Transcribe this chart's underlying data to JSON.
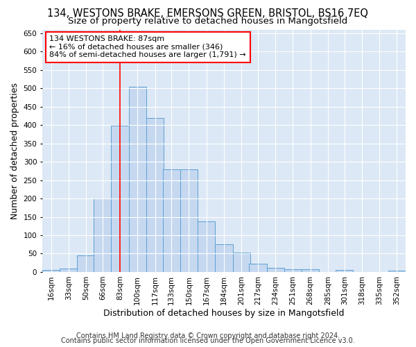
{
  "title_line1": "134, WESTONS BRAKE, EMERSONS GREEN, BRISTOL, BS16 7EQ",
  "title_line2": "Size of property relative to detached houses in Mangotsfield",
  "xlabel": "Distribution of detached houses by size in Mangotsfield",
  "ylabel": "Number of detached properties",
  "bar_color": "#c5d8f0",
  "bar_edge_color": "#5a9fd4",
  "background_color": "#dce8f5",
  "grid_color": "#ffffff",
  "annotation_text_line1": "134 WESTONS BRAKE: 87sqm",
  "annotation_text_line2": "← 16% of detached houses are smaller (346)",
  "annotation_text_line3": "84% of semi-detached houses are larger (1,791) →",
  "categories": [
    "16sqm",
    "33sqm",
    "50sqm",
    "66sqm",
    "83sqm",
    "100sqm",
    "117sqm",
    "133sqm",
    "150sqm",
    "167sqm",
    "184sqm",
    "201sqm",
    "217sqm",
    "234sqm",
    "251sqm",
    "268sqm",
    "285sqm",
    "301sqm",
    "318sqm",
    "335sqm",
    "352sqm"
  ],
  "bin_starts": [
    16,
    33,
    50,
    66,
    83,
    100,
    117,
    133,
    150,
    167,
    184,
    201,
    217,
    234,
    251,
    268,
    285,
    301,
    318,
    335,
    352
  ],
  "bin_width": 17,
  "values": [
    5,
    10,
    45,
    200,
    398,
    505,
    420,
    280,
    280,
    138,
    75,
    52,
    22,
    12,
    8,
    8,
    0,
    6,
    0,
    0,
    3
  ],
  "red_line_x": 91.5,
  "ylim": [
    0,
    660
  ],
  "yticks": [
    0,
    50,
    100,
    150,
    200,
    250,
    300,
    350,
    400,
    450,
    500,
    550,
    600,
    650
  ],
  "footer_line1": "Contains HM Land Registry data © Crown copyright and database right 2024.",
  "footer_line2": "Contains public sector information licensed under the Open Government Licence v3.0.",
  "title_fontsize": 10.5,
  "subtitle_fontsize": 9.5,
  "axis_label_fontsize": 9,
  "tick_fontsize": 7.5,
  "annotation_fontsize": 8,
  "footer_fontsize": 7
}
